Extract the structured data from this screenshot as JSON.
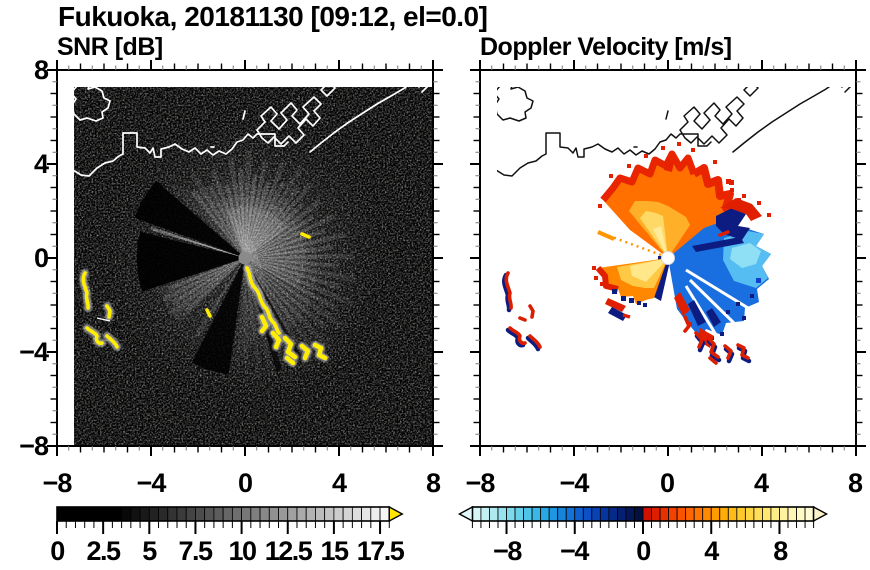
{
  "figure": {
    "title": "Fukuoka, 20181130 [09:12, el=0.0]"
  },
  "panels": [
    {
      "title": "SNR [dB]"
    },
    {
      "title": "Doppler Velocity [m/s]"
    }
  ],
  "axes": {
    "x_labels": [
      "−8",
      "−4",
      "0",
      "4",
      "8"
    ],
    "y_labels": [
      "8",
      "4",
      "0",
      "−4",
      "−8"
    ]
  },
  "snr_colorbar": {
    "labels": [
      "0",
      "2.5",
      "5",
      "7.5",
      "10",
      "12.5",
      "15",
      "17.5"
    ],
    "label_values": [
      0,
      2.5,
      5,
      7.5,
      10,
      12.5,
      15,
      17.5
    ],
    "range": [
      0,
      18
    ],
    "extend": "max",
    "over_arrow_color": "#ffe500",
    "segment_step": 0.5,
    "segment_colors": [
      "#000000",
      "#000000",
      "#000000",
      "#000000",
      "#000000",
      "#000000",
      "#000000",
      "#080808",
      "#111111",
      "#191919",
      "#222222",
      "#2a2a2a",
      "#333333",
      "#3b3b3b",
      "#444444",
      "#4c4c4c",
      "#555555",
      "#5d5d5d",
      "#666666",
      "#6e6e6e",
      "#777777",
      "#7f7f7f",
      "#888888",
      "#909090",
      "#999999",
      "#a1a1a1",
      "#aaaaaa",
      "#b2b2b2",
      "#bbbbbb",
      "#c3c3c3",
      "#cccccc",
      "#d4d4d4",
      "#dddddd",
      "#e5e5e5",
      "#eeeeee",
      "#f6f6f6"
    ]
  },
  "vel_colorbar": {
    "labels": [
      "−8",
      "−4",
      "0",
      "4",
      "8"
    ],
    "label_values": [
      -8,
      -4,
      0,
      4,
      8
    ],
    "range": [
      -10,
      10
    ],
    "extend": "both",
    "under_arrow_color": "#e2f9f9",
    "over_arrow_color": "#fdf3c8",
    "segment_step": 0.5,
    "segment_colors": [
      "#d6f5f5",
      "#c2f0f2",
      "#aeeaf0",
      "#96e2ee",
      "#7ed9ec",
      "#66cfea",
      "#4ec4e8",
      "#38b8e6",
      "#28a8e4",
      "#1e96e0",
      "#1784dc",
      "#1272d8",
      "#0e60d0",
      "#0b50c4",
      "#0942b4",
      "#07359e",
      "#062a88",
      "#052070",
      "#041858",
      "#031040",
      "#d01000",
      "#dd1f00",
      "#e93000",
      "#f34100",
      "#fa5300",
      "#ff6500",
      "#ff7700",
      "#ff8900",
      "#ff9a00",
      "#ffab08",
      "#ffbb18",
      "#ffc92c",
      "#ffd542",
      "#ffdf58",
      "#ffe770",
      "#ffed88",
      "#fff2a0",
      "#fff6b4",
      "#fff9c6",
      "#fffbd4"
    ]
  },
  "chart_data": [
    {
      "type": "heatmap",
      "title": "SNR [dB]",
      "xlim": [
        -8,
        8
      ],
      "ylim": [
        -8,
        8
      ],
      "x_ticks": [
        -8,
        -4,
        0,
        4,
        8
      ],
      "y_ticks": [
        8,
        4,
        0,
        -4,
        -8
      ],
      "minor_tick_step": 0.5,
      "grid": false,
      "background": "#000000",
      "colorbar": {
        "range": [
          0,
          18
        ],
        "tick_values": [
          0,
          2.5,
          5,
          7.5,
          10,
          12.5,
          15,
          17.5
        ],
        "extend": "max",
        "colormap": "black-to-white, yellow over"
      },
      "visible_features": [
        "radar located at origin (0,0), small gray disc",
        "bright echo fan from azimuth ~-95 to ~137 deg, radius ~2-5 km with ray streaks",
        "thin bright ray at azimuth ~162 deg, radius ~4.2",
        "secondary fan azimuth ~200-225 deg radius ~4",
        "dark wedges at az ~140-160, ~166-198, ~243-262 deg",
        "yellow (>18 dB) clutter arc from origin toward (3,-4.5)",
        "yellow clutter squiggles near (-7,-1.5) to (-5.5,-4)",
        "white coastline of Hakata Bay with port piers and island at upper left"
      ]
    },
    {
      "type": "heatmap",
      "title": "Doppler Velocity [m/s]",
      "xlim": [
        -8,
        8
      ],
      "ylim": [
        -8,
        8
      ],
      "x_ticks": [
        -8,
        -4,
        0,
        4,
        8
      ],
      "y_ticks": [
        8,
        4,
        0,
        -4,
        -8
      ],
      "minor_tick_step": 0.5,
      "grid": false,
      "background": "#ffffff",
      "colorbar": {
        "range": [
          -10,
          10
        ],
        "tick_values": [
          -8,
          -4,
          0,
          4,
          8
        ],
        "extend": "both",
        "colormap": "cyan-blue-navy / red-orange-yellow diverging at 0"
      },
      "visible_features": [
        "positive-velocity fan (orange/red rim, yellow core) azimuth ~45-137 deg, radius ~4",
        "negative-velocity fan (light blue to navy, red contamination) azimuth ~-80 to 42 deg, radius ~4.5",
        "small positive fan azimuth ~188-250 deg, radius ~3, red rim and navy speckles",
        "thin orange dotted ray azimuth ~160 deg",
        "red/navy clutter echoes at same locations as SNR yellow clutter",
        "black coastline, white background, white hole at radar origin"
      ]
    }
  ]
}
